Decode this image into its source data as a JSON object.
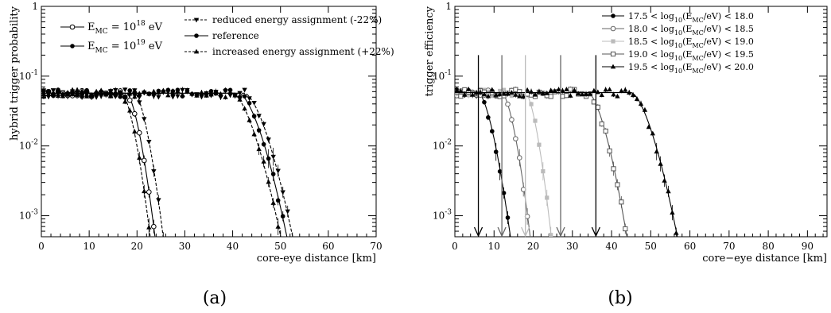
{
  "captions": [
    "(a)",
    "(b)"
  ],
  "chart_data": [
    {
      "type": "scatter",
      "panel": "a",
      "xlabel": "core-eye distance [km]",
      "ylabel": "hybrid trigger probability",
      "xlim": [
        0,
        70
      ],
      "ylim": [
        0.0005,
        1
      ],
      "yscale": "log",
      "x_ticks": [
        "0",
        "10",
        "20",
        "30",
        "40",
        "50",
        "60",
        "70"
      ],
      "y_ticks": [
        "10^-3",
        "10^-2",
        "10^-1",
        "1"
      ],
      "y_tick_display": [
        {
          "base": "10",
          "exp": "-3",
          "value": 0.001
        },
        {
          "base": "10",
          "exp": "-2",
          "value": 0.01
        },
        {
          "base": "10",
          "exp": "-1",
          "value": 0.1
        },
        {
          "base": "1",
          "exp": "",
          "value": 1
        }
      ],
      "legend_left": [
        {
          "text": "E_MC = 10^18 eV",
          "base": "E",
          "sub": "MC",
          "mid": " = 10",
          "sup": "18",
          "tail": " eV",
          "marker": "open-circle"
        },
        {
          "text": "E_MC = 10^19 eV",
          "base": "E",
          "sub": "MC",
          "mid": " = 10",
          "sup": "19",
          "tail": " eV",
          "marker": "filled-circle"
        }
      ],
      "legend_right": [
        {
          "text": "reduced energy assignment (-22%)",
          "marker": "down-triangle",
          "line": "dashed"
        },
        {
          "text": "reference",
          "marker": "filled-circle",
          "line": "solid"
        },
        {
          "text": "increased energy assignment (+22%)",
          "marker": "up-triangle",
          "line": "dashed"
        }
      ],
      "grid": false,
      "legend_position": "top",
      "plateau": 0.057,
      "series": [
        {
          "energy": "1e18",
          "variant": "reduced",
          "marker": "down-triangle",
          "line": "dashed",
          "x_break": 19.5,
          "decay_per_km": 3.8
        },
        {
          "energy": "1e18",
          "variant": "reference",
          "marker": "open-circle",
          "line": "solid",
          "x_break": 17.8,
          "decay_per_km": 3.8
        },
        {
          "energy": "1e18",
          "variant": "increased",
          "marker": "up-triangle",
          "line": "dashed",
          "x_break": 16.8,
          "decay_per_km": 3.8
        },
        {
          "energy": "1e19",
          "variant": "reduced",
          "marker": "down-triangle",
          "line": "dashed",
          "x_break": 42.5,
          "decay_per_km": 6.4
        },
        {
          "energy": "1e19",
          "variant": "reference",
          "marker": "filled-circle",
          "line": "solid",
          "x_break": 41.3,
          "decay_per_km": 6.4
        },
        {
          "energy": "1e19",
          "variant": "increased",
          "marker": "up-triangle",
          "line": "dashed",
          "x_break": 40.0,
          "decay_per_km": 6.4
        }
      ]
    },
    {
      "type": "scatter",
      "panel": "b",
      "xlabel": "core−eye distance [km]",
      "ylabel": "trigger efficiency",
      "xlim": [
        0,
        95
      ],
      "ylim": [
        0.0005,
        1
      ],
      "yscale": "log",
      "x_ticks": [
        "0",
        "10",
        "20",
        "30",
        "40",
        "50",
        "60",
        "70",
        "80",
        "90"
      ],
      "y_ticks": [
        "10^-3",
        "10^-2",
        "10^-1",
        "1"
      ],
      "y_tick_display": [
        {
          "base": "10",
          "exp": "-3",
          "value": 0.001
        },
        {
          "base": "10",
          "exp": "-2",
          "value": 0.01
        },
        {
          "base": "10",
          "exp": "-1",
          "value": 0.1
        },
        {
          "base": "1",
          "exp": "",
          "value": 1
        }
      ],
      "grid": false,
      "legend_position": "top-right",
      "plateau": 0.058,
      "series": [
        {
          "name": "17.5 < log10(E_MC/eV) < 18.0",
          "lo": "17.5",
          "hi": "18.0",
          "color": "#000000",
          "marker": "filled-circle",
          "x_break": 6.0,
          "decay_per_km": 5.2,
          "arrows": [
            6,
            36
          ]
        },
        {
          "name": "18.0 < log10(E_MC/eV) < 18.5",
          "lo": "18.0",
          "hi": "18.5",
          "color": "#666666",
          "marker": "open-circle",
          "x_break": 12.0,
          "decay_per_km": 4.6,
          "arrows": [
            12,
            27
          ]
        },
        {
          "name": "18.5 < log10(E_MC/eV) < 19.0",
          "lo": "18.5",
          "hi": "19.0",
          "color": "#bbbbbb",
          "marker": "filled-square",
          "x_break": 18.0,
          "decay_per_km": 4.2,
          "arrows": [
            18
          ]
        },
        {
          "name": "19.0 < log10(E_MC/eV) < 19.5",
          "lo": "19.0",
          "hi": "19.5",
          "color": "#555555",
          "marker": "open-square",
          "x_break": 34.0,
          "decay_per_km": 6.3
        },
        {
          "name": "19.5 < log10(E_MC/eV) < 20.0",
          "lo": "19.5",
          "hi": "20.0",
          "color": "#000000",
          "marker": "up-triangle",
          "x_break": 45.0,
          "decay_per_km": 7.5
        }
      ]
    }
  ]
}
